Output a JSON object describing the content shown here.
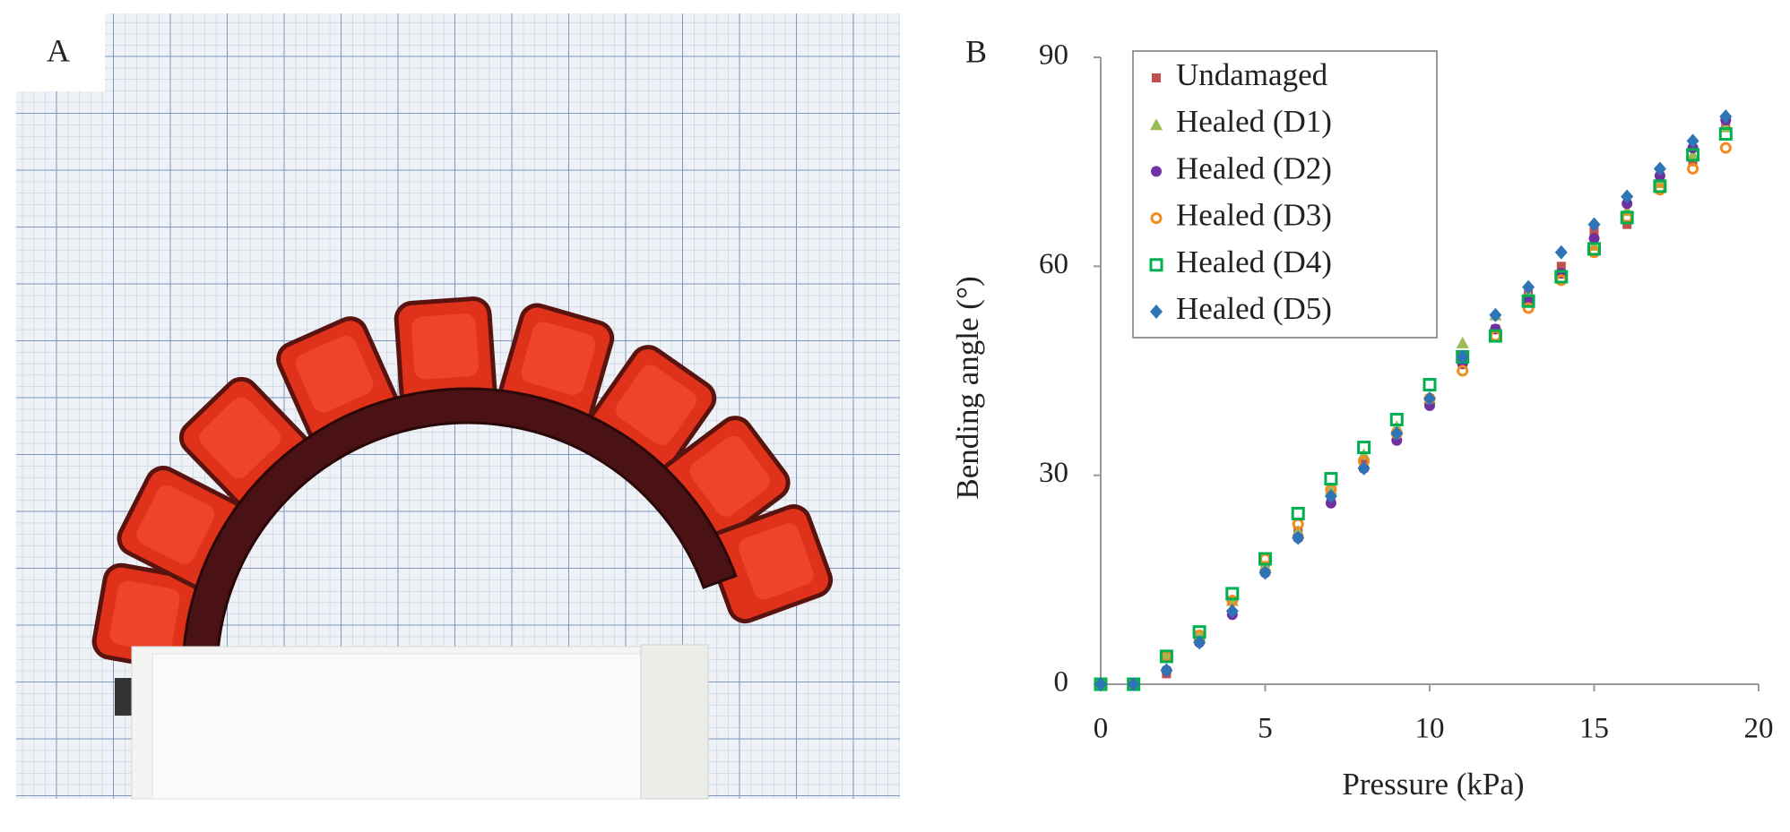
{
  "panel_labels": [
    "A",
    "B"
  ],
  "chart_data": {
    "type": "scatter",
    "xlabel": "Pressure (kPa)",
    "ylabel": "Bending angle (°)",
    "xlim": [
      0,
      20
    ],
    "ylim": [
      0,
      90
    ],
    "xticks": [
      0,
      5,
      10,
      15,
      20
    ],
    "yticks": [
      0,
      30,
      60,
      90
    ],
    "grid": false,
    "legend": "upper left",
    "x": [
      0,
      1,
      2,
      3,
      4,
      5,
      6,
      7,
      8,
      9,
      10,
      11,
      12,
      13,
      14,
      15,
      16,
      17,
      18,
      19
    ],
    "series": [
      {
        "name": "Undamaged",
        "color": "#c0504d",
        "marker": "square",
        "values": [
          0,
          0,
          1.5,
          7,
          12,
          17,
          22,
          27,
          32,
          36,
          41,
          47,
          51,
          56,
          60,
          65,
          66,
          72,
          75,
          80
        ]
      },
      {
        "name": "Healed (D1)",
        "color": "#9bbb59",
        "marker": "triangle",
        "values": [
          0,
          0,
          4,
          7,
          12,
          17,
          22,
          28,
          33,
          37,
          41,
          49,
          53,
          56,
          59,
          63,
          68,
          72,
          76,
          80
        ]
      },
      {
        "name": "Healed (D2)",
        "color": "#7030a0",
        "marker": "circle",
        "values": [
          0,
          0,
          2,
          6,
          10,
          16,
          21,
          26,
          31,
          35,
          40,
          46,
          51,
          55,
          59,
          64,
          69,
          73,
          77,
          81
        ]
      },
      {
        "name": "Healed (D3)",
        "color": "#f28a1e",
        "marker": "open-circle",
        "values": [
          0,
          0,
          4,
          7,
          12,
          18,
          23,
          28,
          32,
          36,
          41,
          45,
          50,
          54,
          58,
          62,
          67,
          71,
          74,
          77
        ]
      },
      {
        "name": "Healed (D4)",
        "color": "#00b050",
        "marker": "open-square",
        "values": [
          0,
          0,
          4,
          7.5,
          13,
          18,
          24.5,
          29.5,
          34,
          38,
          43,
          47,
          50,
          55,
          58.5,
          62.5,
          67,
          71.5,
          76,
          79
        ]
      },
      {
        "name": "Healed (D5)",
        "color": "#2e75b6",
        "marker": "diamond",
        "values": [
          0,
          0,
          2,
          6,
          10.5,
          16,
          21,
          27,
          31,
          36,
          41,
          47,
          53,
          57,
          62,
          66,
          70,
          74,
          78,
          81.5
        ]
      }
    ]
  }
}
